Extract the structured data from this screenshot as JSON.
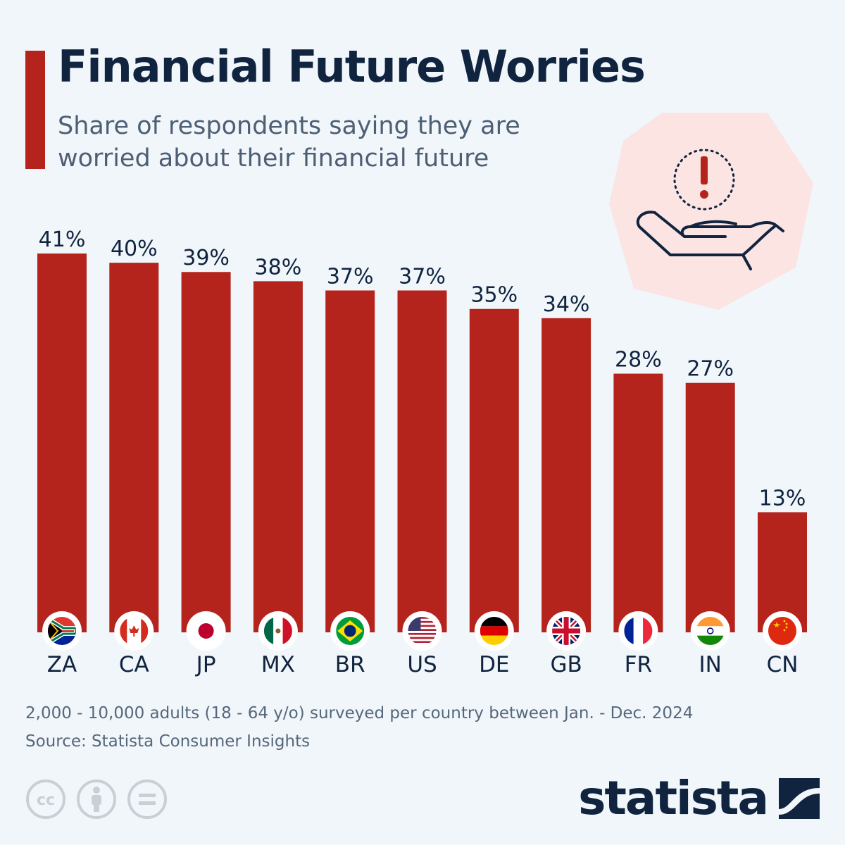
{
  "header": {
    "title": "Financial Future Worries",
    "subtitle": "Share of respondents saying they are worried about their financial future"
  },
  "colors": {
    "accent": "#b5241c",
    "bar": "#b5241c",
    "title": "#10243f",
    "subtitle": "#4d5f74",
    "background": "#f1f6fb",
    "illustration_bg": "#fbe4e2"
  },
  "illustration": {
    "icon": "hand-with-exclamation-icon"
  },
  "chart_data": {
    "type": "bar",
    "categories": [
      "ZA",
      "CA",
      "JP",
      "MX",
      "BR",
      "US",
      "DE",
      "GB",
      "FR",
      "IN",
      "CN"
    ],
    "values": [
      41,
      40,
      39,
      38,
      37,
      37,
      35,
      34,
      28,
      27,
      13
    ],
    "value_labels": [
      "41%",
      "40%",
      "39%",
      "38%",
      "37%",
      "37%",
      "35%",
      "34%",
      "28%",
      "27%",
      "13%"
    ],
    "flags": [
      "south-africa-flag-icon",
      "canada-flag-icon",
      "japan-flag-icon",
      "mexico-flag-icon",
      "brazil-flag-icon",
      "usa-flag-icon",
      "germany-flag-icon",
      "uk-flag-icon",
      "france-flag-icon",
      "india-flag-icon",
      "china-flag-icon"
    ],
    "title": "Financial Future Worries",
    "xlabel": "",
    "ylabel": "",
    "ylim": [
      0,
      41
    ],
    "grid": false,
    "legend": "none"
  },
  "footer": {
    "note": "2,000 - 10,000 adults (18 - 64 y/o) surveyed per country between Jan. - Dec. 2024",
    "source": "Source: Statista Consumer Insights",
    "license_icons": [
      "creative-commons-icon",
      "attribution-icon",
      "no-derivatives-icon"
    ],
    "logo_text": "statista"
  }
}
